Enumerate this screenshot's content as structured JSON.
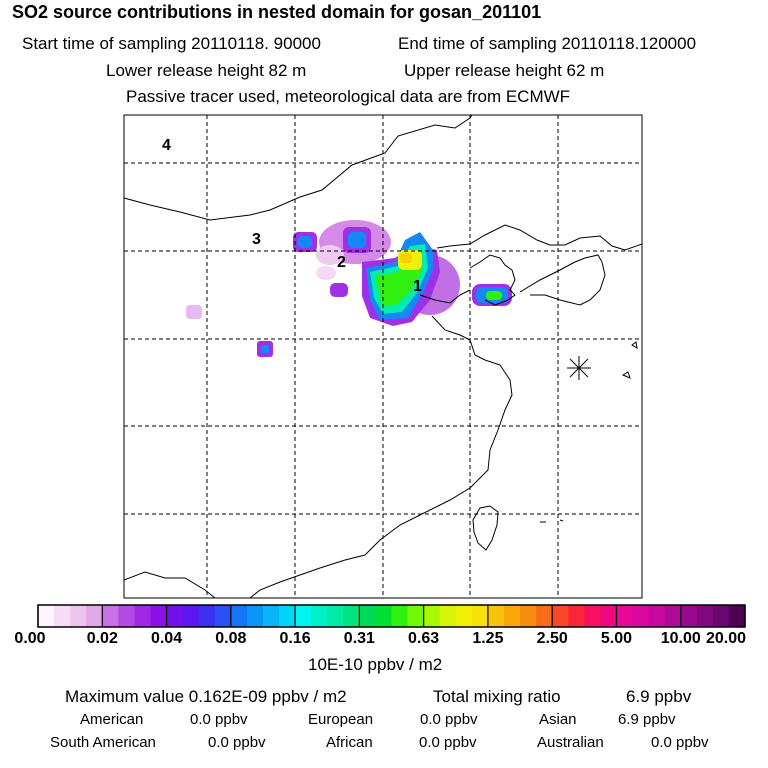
{
  "title": "SO2 source contributions in nested domain for gosan_201101",
  "header": {
    "start_label": "Start time of sampling 20110118. 90000",
    "end_label": "End time of sampling 20110118.120000",
    "lower_release": "Lower release height   82 m",
    "upper_release": "Upper release height   62 m",
    "tracer_note": "Passive tracer used, meteorological data are from ECMWF"
  },
  "map": {
    "region_labels": [
      "4",
      "3",
      "2",
      "1"
    ],
    "receptor_marker": "star-icon"
  },
  "colorbar": {
    "ticks": [
      "0.00",
      "0.02",
      "0.04",
      "0.08",
      "0.16",
      "0.31",
      "0.63",
      "1.25",
      "2.50",
      "5.00",
      "10.00",
      "20.00"
    ],
    "units": "10E-10 ppbv / m2",
    "colors": [
      "#fdf4fd",
      "#f6dcf6",
      "#eec5ee",
      "#e1a8e9",
      "#c870e4",
      "#b44ae4",
      "#a128e6",
      "#8c10e8",
      "#7210ec",
      "#5a18ee",
      "#3c30f0",
      "#2850f2",
      "#1476f4",
      "#0a96f6",
      "#08b6f8",
      "#00d4f8",
      "#00f4f0",
      "#00f0c8",
      "#00eca4",
      "#00e480",
      "#00d858",
      "#00e030",
      "#30f010",
      "#70f808",
      "#a8f808",
      "#d4f408",
      "#f0f008",
      "#f8e008",
      "#f8c408",
      "#f8a808",
      "#f88c10",
      "#f86c18",
      "#f84828",
      "#f82838",
      "#f81060",
      "#f00880",
      "#e80898",
      "#d808a0",
      "#c808a0",
      "#b00898",
      "#980890",
      "#800880",
      "#680870",
      "#500050"
    ]
  },
  "stats": {
    "maximum": "Maximum value  0.162E-09 ppbv / m2",
    "total_label": "Total mixing ratio",
    "total_value": "6.9 ppbv"
  },
  "regions": [
    {
      "name": "American",
      "value": "0.0 ppbv"
    },
    {
      "name": "European",
      "value": "0.0 ppbv"
    },
    {
      "name": "Asian",
      "value": "6.9 ppbv"
    },
    {
      "name": "South American",
      "value": "0.0 ppbv"
    },
    {
      "name": "African",
      "value": "0.0 ppbv"
    },
    {
      "name": "Australian",
      "value": "0.0 ppbv"
    }
  ]
}
